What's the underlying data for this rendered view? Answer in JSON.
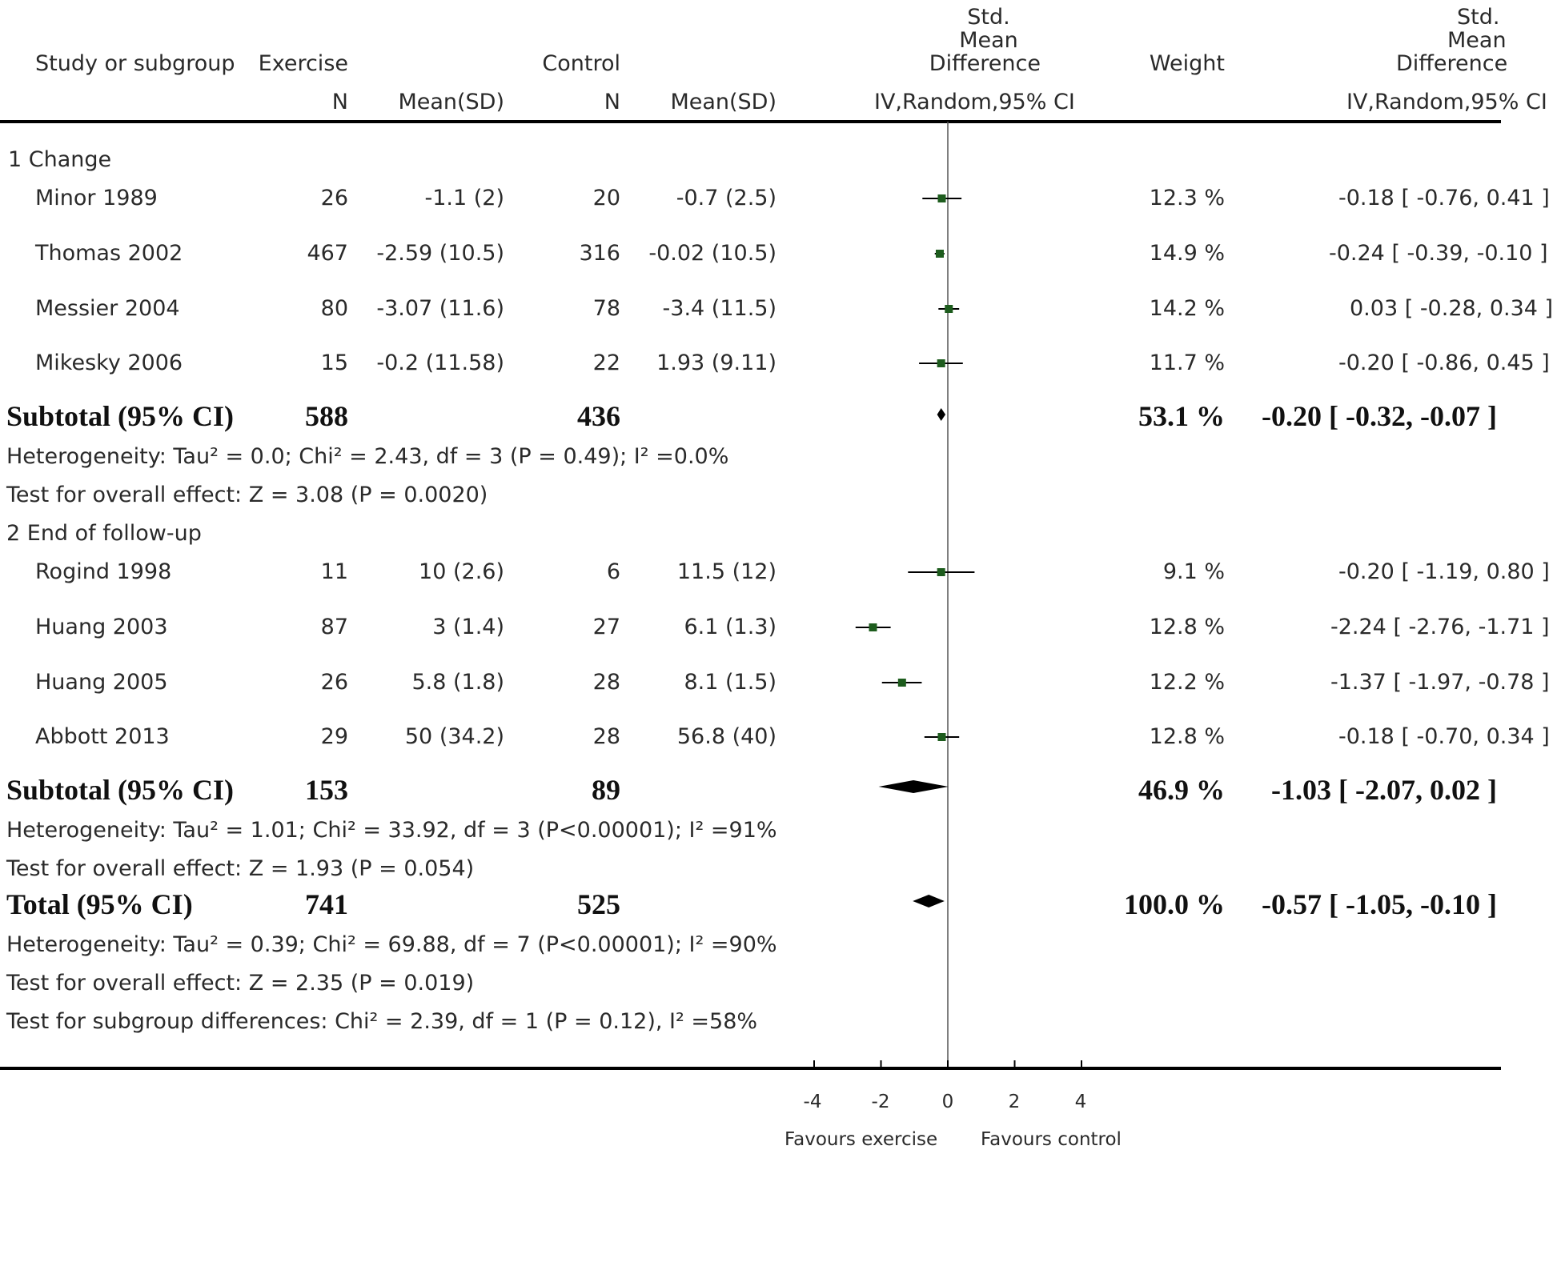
{
  "chart_data": {
    "type": "forest",
    "columns": {
      "study": "Study or subgroup",
      "exercise": "Exercise",
      "control": "Control",
      "n": "N",
      "mean_sd": "Mean(SD)",
      "smd_top": "Std.",
      "smd_mid": "Mean",
      "smd_bot": "Difference",
      "method": "IV,Random,95% CI",
      "weight": "Weight",
      "smd2_top": "Std.",
      "smd2_mid": "Mean",
      "smd2_bot": "Difference",
      "method2": "IV,Random,95% CI"
    },
    "subgroups": [
      {
        "label": "1 Change",
        "studies": [
          {
            "name": "Minor 1989",
            "ex_n": "26",
            "ex_mean_sd": "-1.1 (2)",
            "ctl_n": "20",
            "ctl_mean_sd": "-0.7 (2.5)",
            "weight": "12.3 %",
            "ci_text": "-0.18 [ -0.76, 0.41 ]",
            "smd": -0.18,
            "lo": -0.76,
            "hi": 0.41
          },
          {
            "name": "Thomas 2002",
            "ex_n": "467",
            "ex_mean_sd": "-2.59 (10.5)",
            "ctl_n": "316",
            "ctl_mean_sd": "-0.02 (10.5)",
            "weight": "14.9 %",
            "ci_text": "-0.24 [ -0.39, -0.10 ]",
            "smd": -0.24,
            "lo": -0.39,
            "hi": -0.1
          },
          {
            "name": "Messier 2004",
            "ex_n": "80",
            "ex_mean_sd": "-3.07 (11.6)",
            "ctl_n": "78",
            "ctl_mean_sd": "-3.4 (11.5)",
            "weight": "14.2 %",
            "ci_text": "0.03 [ -0.28, 0.34 ]",
            "smd": 0.03,
            "lo": -0.28,
            "hi": 0.34
          },
          {
            "name": "Mikesky 2006",
            "ex_n": "15",
            "ex_mean_sd": "-0.2 (11.58)",
            "ctl_n": "22",
            "ctl_mean_sd": "1.93 (9.11)",
            "weight": "11.7 %",
            "ci_text": "-0.20 [ -0.86, 0.45 ]",
            "smd": -0.2,
            "lo": -0.86,
            "hi": 0.45
          }
        ],
        "subtotal": {
          "label": "Subtotal (95% CI)",
          "ex_n": "588",
          "ctl_n": "436",
          "weight": "53.1 %",
          "ci_text": "-0.20 [ -0.32, -0.07 ]",
          "smd": -0.2,
          "lo": -0.32,
          "hi": -0.07
        },
        "heterogeneity": "Heterogeneity: Tau² = 0.0; Chi² = 2.43, df = 3 (P = 0.49); I² =0.0%",
        "overall_effect": "Test for overall effect: Z = 3.08 (P = 0.0020)"
      },
      {
        "label": "2 End of follow-up",
        "studies": [
          {
            "name": "Rogind 1998",
            "ex_n": "11",
            "ex_mean_sd": "10 (2.6)",
            "ctl_n": "6",
            "ctl_mean_sd": "11.5 (12)",
            "weight": "9.1 %",
            "ci_text": "-0.20 [ -1.19, 0.80 ]",
            "smd": -0.2,
            "lo": -1.19,
            "hi": 0.8
          },
          {
            "name": "Huang 2003",
            "ex_n": "87",
            "ex_mean_sd": "3 (1.4)",
            "ctl_n": "27",
            "ctl_mean_sd": "6.1 (1.3)",
            "weight": "12.8 %",
            "ci_text": "-2.24 [ -2.76, -1.71 ]",
            "smd": -2.24,
            "lo": -2.76,
            "hi": -1.71
          },
          {
            "name": "Huang 2005",
            "ex_n": "26",
            "ex_mean_sd": "5.8 (1.8)",
            "ctl_n": "28",
            "ctl_mean_sd": "8.1 (1.5)",
            "weight": "12.2 %",
            "ci_text": "-1.37 [ -1.97, -0.78 ]",
            "smd": -1.37,
            "lo": -1.97,
            "hi": -0.78
          },
          {
            "name": "Abbott 2013",
            "ex_n": "29",
            "ex_mean_sd": "50 (34.2)",
            "ctl_n": "28",
            "ctl_mean_sd": "56.8 (40)",
            "weight": "12.8 %",
            "ci_text": "-0.18 [ -0.70, 0.34 ]",
            "smd": -0.18,
            "lo": -0.7,
            "hi": 0.34
          }
        ],
        "subtotal": {
          "label": "Subtotal (95% CI)",
          "ex_n": "153",
          "ctl_n": "89",
          "weight": "46.9 %",
          "ci_text": "-1.03 [ -2.07, 0.02 ]",
          "smd": -1.03,
          "lo": -2.07,
          "hi": 0.02
        },
        "heterogeneity": "Heterogeneity: Tau² = 1.01; Chi² = 33.92, df = 3 (P<0.00001); I² =91%",
        "overall_effect": "Test for overall effect: Z = 1.93 (P = 0.054)"
      }
    ],
    "total": {
      "label": "Total (95% CI)",
      "ex_n": "741",
      "ctl_n": "525",
      "weight": "100.0 %",
      "ci_text": "-0.57 [ -1.05, -0.10 ]",
      "smd": -0.57,
      "lo": -1.05,
      "hi": -0.1
    },
    "total_heterogeneity": "Heterogeneity: Tau² = 0.39; Chi² = 69.88, df = 7 (P<0.00001); I² =90%",
    "total_overall_effect": "Test for overall effect: Z = 2.35 (P = 0.019)",
    "subgroup_differences": "Test for subgroup differences: Chi² = 2.39, df = 1 (P = 0.12), I² =58%",
    "x_ticks": [
      -4,
      -2,
      0,
      2,
      4
    ],
    "x_tick_labels": [
      "-4",
      "-2",
      "0",
      "2",
      "4"
    ],
    "xlim": [
      -4,
      4
    ],
    "favours_left": "Favours exercise",
    "favours_right": "Favours control",
    "marker_color": "#1d5c1d"
  }
}
